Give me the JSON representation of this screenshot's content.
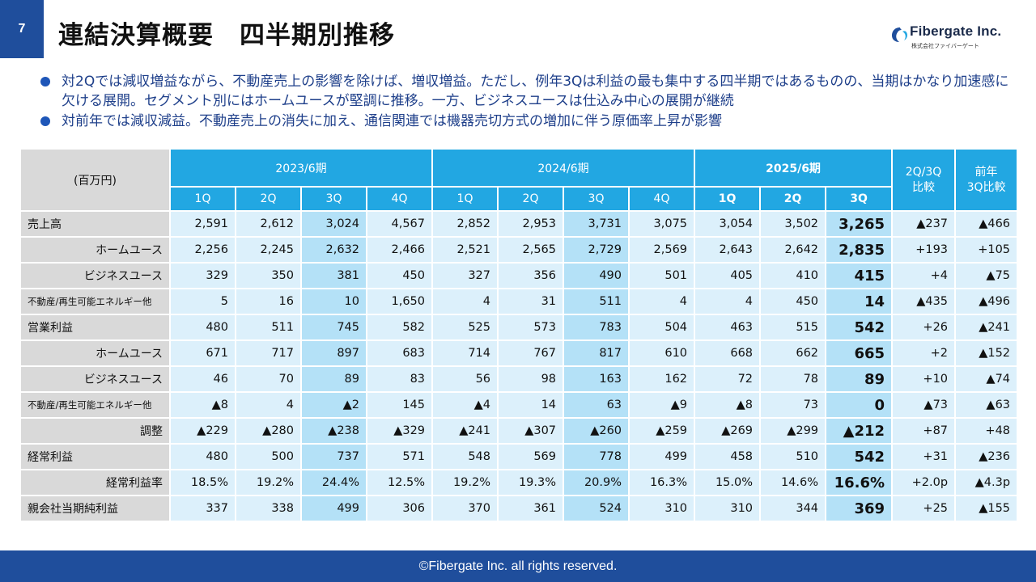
{
  "page_number": "7",
  "title": "連結決算概要　四半期別推移",
  "logo": {
    "name": "Fibergate Inc.",
    "subtitle": "株式会社ファイバーゲート",
    "brand_color": "#1f4e9c",
    "icon": "fibergate-logo-icon"
  },
  "bullets": [
    "対2Qでは減収増益ながら、不動産売上の影響を除けば、増収増益。ただし、例年3Qは利益の最も集中する四半期ではあるものの、当期はかなり加速感に欠ける展開。セグメント別にはホームユースが堅調に推移。一方、ビジネスユースは仕込み中心の展開が継続",
    "対前年では減収減益。不動産売上の消失に加え、通信関連では機器売切方式の増加に伴う原価率上昇が影響"
  ],
  "table": {
    "unit_label": "(百万円)",
    "periods": [
      {
        "label": "2023/6期",
        "quarters": [
          "1Q",
          "2Q",
          "3Q",
          "4Q"
        ]
      },
      {
        "label": "2024/6期",
        "quarters": [
          "1Q",
          "2Q",
          "3Q",
          "4Q"
        ]
      },
      {
        "label": "2025/6期",
        "quarters": [
          "1Q",
          "2Q",
          "3Q"
        ]
      }
    ],
    "compare_headers": [
      "2Q/3Q\n比較",
      "前年\n3Q比較"
    ],
    "rows": [
      {
        "label": "売上高",
        "style": "main",
        "values": [
          "2,591",
          "2,612",
          "3,024",
          "4,567",
          "2,852",
          "2,953",
          "3,731",
          "3,075",
          "3,054",
          "3,502",
          "3,265"
        ],
        "compare": [
          "▲237",
          "▲466"
        ]
      },
      {
        "label": "ホームユース",
        "style": "indent",
        "values": [
          "2,256",
          "2,245",
          "2,632",
          "2,466",
          "2,521",
          "2,565",
          "2,729",
          "2,569",
          "2,643",
          "2,642",
          "2,835"
        ],
        "compare": [
          "+193",
          "+105"
        ]
      },
      {
        "label": "ビジネスユース",
        "style": "indent",
        "values": [
          "329",
          "350",
          "381",
          "450",
          "327",
          "356",
          "490",
          "501",
          "405",
          "410",
          "415"
        ],
        "compare": [
          "+4",
          "▲75"
        ]
      },
      {
        "label": "不動産/再生可能エネルギー他",
        "style": "small",
        "values": [
          "5",
          "16",
          "10",
          "1,650",
          "4",
          "31",
          "511",
          "4",
          "4",
          "450",
          "14"
        ],
        "compare": [
          "▲435",
          "▲496"
        ]
      },
      {
        "label": "営業利益",
        "style": "main",
        "values": [
          "480",
          "511",
          "745",
          "582",
          "525",
          "573",
          "783",
          "504",
          "463",
          "515",
          "542"
        ],
        "compare": [
          "+26",
          "▲241"
        ]
      },
      {
        "label": "ホームユース",
        "style": "indent",
        "values": [
          "671",
          "717",
          "897",
          "683",
          "714",
          "767",
          "817",
          "610",
          "668",
          "662",
          "665"
        ],
        "compare": [
          "+2",
          "▲152"
        ]
      },
      {
        "label": "ビジネスユース",
        "style": "indent",
        "values": [
          "46",
          "70",
          "89",
          "83",
          "56",
          "98",
          "163",
          "162",
          "72",
          "78",
          "89"
        ],
        "compare": [
          "+10",
          "▲74"
        ]
      },
      {
        "label": "不動産/再生可能エネルギー他",
        "style": "small",
        "values": [
          "▲8",
          "4",
          "▲2",
          "145",
          "▲4",
          "14",
          "63",
          "▲9",
          "▲8",
          "73",
          "0"
        ],
        "compare": [
          "▲73",
          "▲63"
        ]
      },
      {
        "label": "調整",
        "style": "indent",
        "values": [
          "▲229",
          "▲280",
          "▲238",
          "▲329",
          "▲241",
          "▲307",
          "▲260",
          "▲259",
          "▲269",
          "▲299",
          "▲212"
        ],
        "compare": [
          "+87",
          "+48"
        ]
      },
      {
        "label": "経常利益",
        "style": "main",
        "values": [
          "480",
          "500",
          "737",
          "571",
          "548",
          "569",
          "778",
          "499",
          "458",
          "510",
          "542"
        ],
        "compare": [
          "+31",
          "▲236"
        ]
      },
      {
        "label": "経常利益率",
        "style": "indent",
        "values": [
          "18.5%",
          "19.2%",
          "24.4%",
          "12.5%",
          "19.2%",
          "19.3%",
          "20.9%",
          "16.3%",
          "15.0%",
          "14.6%",
          "16.6%"
        ],
        "compare": [
          "+2.0p",
          "▲4.3p"
        ]
      },
      {
        "label": "親会社当期純利益",
        "style": "main",
        "values": [
          "337",
          "338",
          "499",
          "306",
          "370",
          "361",
          "524",
          "310",
          "310",
          "344",
          "369"
        ],
        "compare": [
          "+25",
          "▲155"
        ]
      }
    ]
  },
  "footer": "©Fibergate Inc. all rights reserved.",
  "colors": {
    "header_blue": "#22a7e2",
    "cell_light": "#dcf0fb",
    "cell_highlight": "#b4e1f7",
    "label_gray": "#d9d9d9",
    "bar_navy": "#1f4e9c"
  }
}
